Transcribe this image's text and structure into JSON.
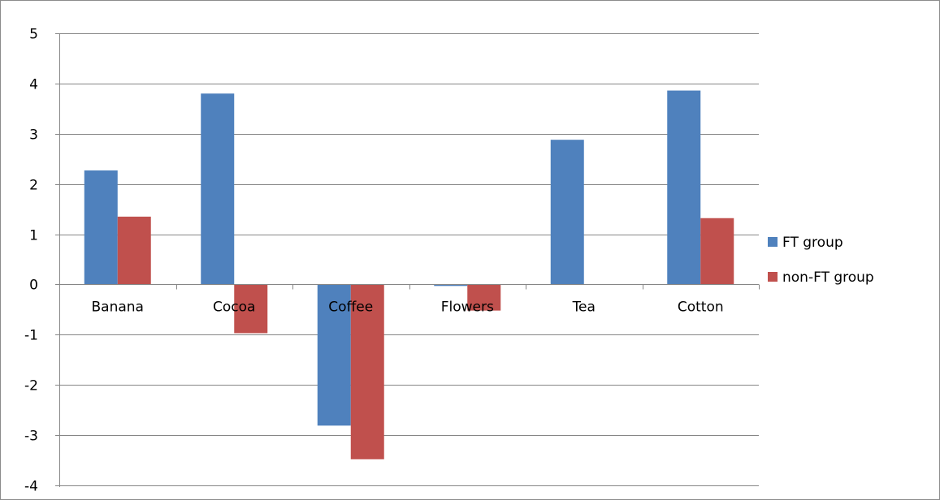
{
  "chart_data": {
    "type": "bar",
    "title": "",
    "xlabel": "",
    "ylabel": "",
    "categories": [
      "Banana",
      "Cocoa",
      "Coffee",
      "Flowers",
      "Tea",
      "Cotton"
    ],
    "series": [
      {
        "name": "FT group",
        "color": "#4F81BD",
        "values": [
          2.27,
          3.8,
          -2.81,
          -0.03,
          2.88,
          3.86
        ]
      },
      {
        "name": "non-FT group",
        "color": "#C0504D",
        "values": [
          1.35,
          -0.97,
          -3.48,
          -0.52,
          0.0,
          1.32
        ]
      }
    ],
    "ylim": [
      -4,
      5
    ],
    "yticks": [
      5,
      4,
      3,
      2,
      1,
      0,
      -1,
      -2,
      -3,
      -4
    ],
    "grid": true,
    "gridline_color": "#868686",
    "legend_position": "right"
  }
}
